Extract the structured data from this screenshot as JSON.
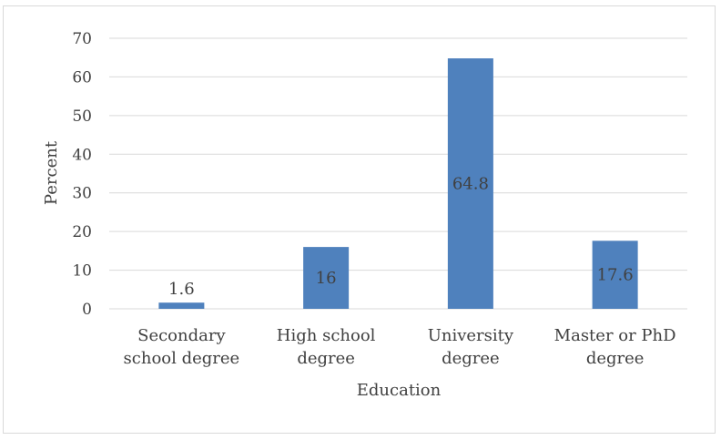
{
  "chart_data": {
    "type": "bar",
    "categories": [
      [
        "Secondary",
        "school degree"
      ],
      [
        "High school",
        "degree"
      ],
      [
        "University",
        "degree"
      ],
      [
        "Master or PhD",
        "degree"
      ]
    ],
    "values": [
      1.6,
      16,
      64.8,
      17.6
    ],
    "data_labels": [
      "1.6",
      "16",
      "64.8",
      "17.6"
    ],
    "xlabel": "Education",
    "ylabel": "Percent",
    "ylim": [
      0,
      70
    ],
    "yticks": [
      0,
      10,
      20,
      30,
      40,
      50,
      60,
      70
    ],
    "grid": true,
    "bar_color": "#4f81bd"
  }
}
